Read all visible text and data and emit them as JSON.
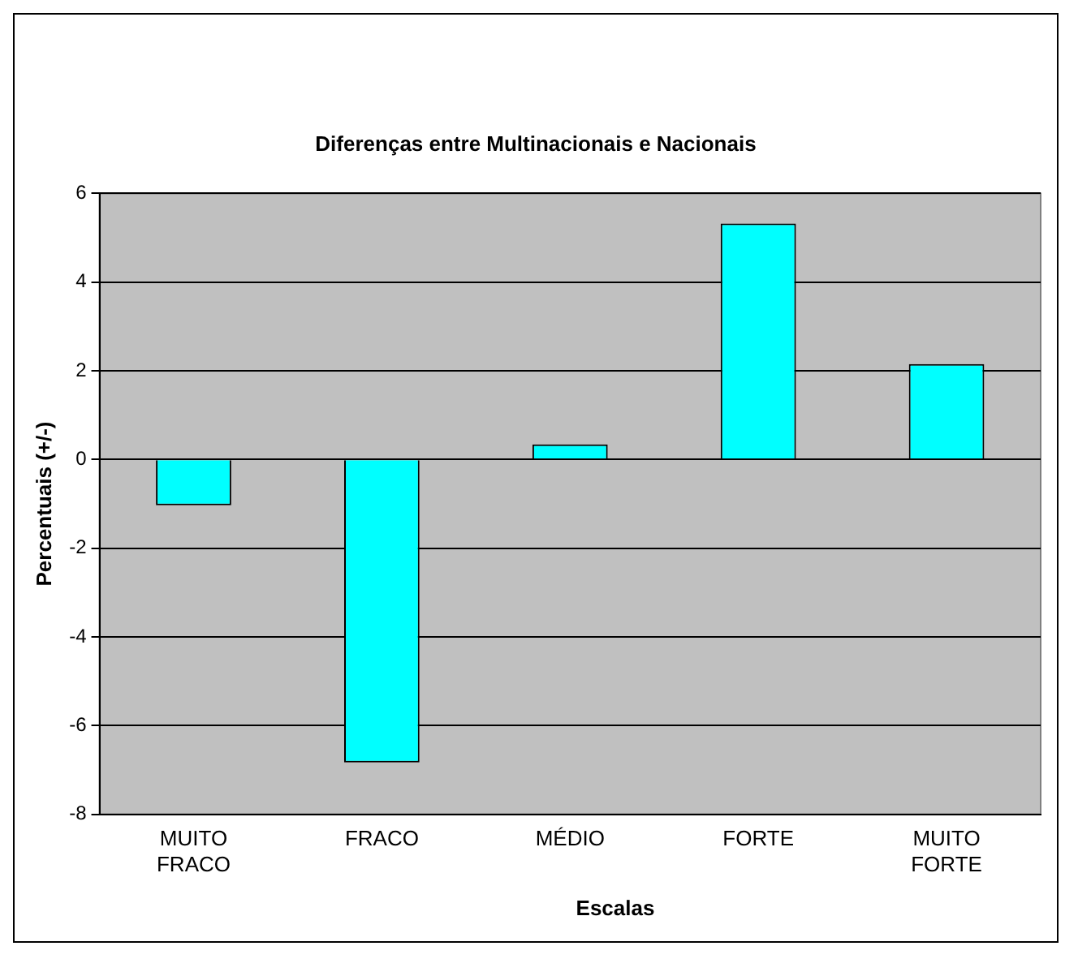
{
  "chart_data": {
    "type": "bar",
    "title": "Diferenças entre Multinacionais e Nacionais",
    "xlabel": "Escalas",
    "ylabel": "Percentuais (+/-)",
    "categories": [
      "MUITO FRACO",
      "FRACO",
      "MÉDIO",
      "FORTE",
      "MUITO FORTE"
    ],
    "values": [
      -1.03,
      -6.83,
      0.34,
      5.32,
      2.15
    ],
    "color": "#00ffff",
    "ylim": [
      -8,
      6
    ],
    "yticks": [
      -8,
      -6,
      -4,
      -2,
      0,
      2,
      4,
      6
    ],
    "grid": "y",
    "legend": false
  }
}
